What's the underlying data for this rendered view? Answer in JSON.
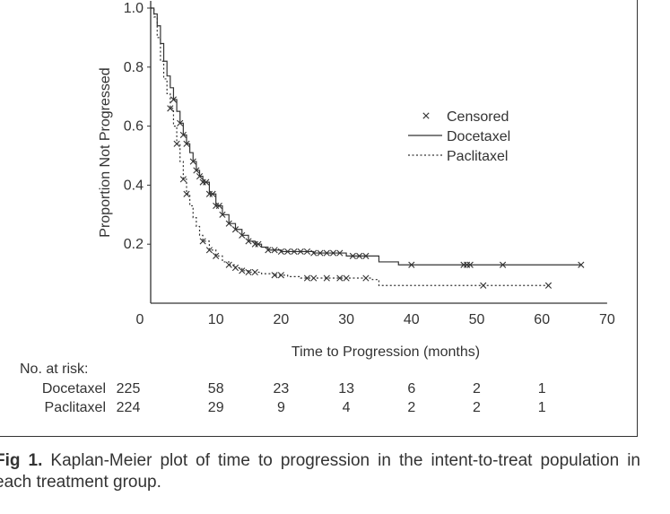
{
  "chart_data": {
    "type": "line",
    "title": "",
    "xlabel": "Time to Progression (months)",
    "ylabel": "Proportion Not Progressed",
    "xlim": [
      0,
      70
    ],
    "ylim": [
      0,
      1.0
    ],
    "x_ticks": [
      0,
      10,
      20,
      30,
      40,
      50,
      60,
      70
    ],
    "y_ticks": [
      0.2,
      0.4,
      0.6,
      0.8,
      1.0
    ],
    "y_tick_labels": [
      "0.2",
      "0.4",
      "0.6",
      "0.8",
      "1.0"
    ],
    "grid": false,
    "legend_position": "right",
    "legend": [
      {
        "label": "Censored",
        "marker": "×"
      },
      {
        "label": "Docetaxel",
        "style": "solid"
      },
      {
        "label": "Paclitaxel",
        "style": "dotted"
      }
    ],
    "series": [
      {
        "name": "Docetaxel",
        "style": "solid",
        "color": "#333333",
        "steps": [
          [
            0,
            1.0
          ],
          [
            0.5,
            0.98
          ],
          [
            1,
            0.94
          ],
          [
            1.5,
            0.88
          ],
          [
            2,
            0.82
          ],
          [
            2.5,
            0.77
          ],
          [
            3,
            0.73
          ],
          [
            3.5,
            0.69
          ],
          [
            4,
            0.65
          ],
          [
            4.5,
            0.61
          ],
          [
            5,
            0.57
          ],
          [
            5.5,
            0.54
          ],
          [
            6,
            0.51
          ],
          [
            6.5,
            0.48
          ],
          [
            7,
            0.45
          ],
          [
            7.5,
            0.43
          ],
          [
            8,
            0.41
          ],
          [
            9,
            0.37
          ],
          [
            10,
            0.33
          ],
          [
            11,
            0.3
          ],
          [
            12,
            0.27
          ],
          [
            13,
            0.25
          ],
          [
            14,
            0.23
          ],
          [
            15,
            0.21
          ],
          [
            16,
            0.2
          ],
          [
            17,
            0.19
          ],
          [
            18,
            0.18
          ],
          [
            20,
            0.175
          ],
          [
            25,
            0.17
          ],
          [
            30,
            0.16
          ],
          [
            33,
            0.16
          ],
          [
            35,
            0.14
          ],
          [
            38,
            0.13
          ],
          [
            66,
            0.13
          ]
        ],
        "censored_x": [
          3.5,
          4.5,
          5,
          5.5,
          6.5,
          7,
          7.5,
          8,
          8.5,
          9,
          9.5,
          10,
          10.5,
          11,
          12,
          13,
          14,
          15,
          16,
          16.5,
          18,
          19,
          20,
          21,
          22,
          23,
          24,
          25,
          26,
          27,
          28,
          29,
          31,
          32,
          33,
          40,
          48,
          48.5,
          49,
          54,
          66
        ]
      },
      {
        "name": "Paclitaxel",
        "style": "dotted",
        "color": "#333333",
        "steps": [
          [
            0,
            1.0
          ],
          [
            0.5,
            0.97
          ],
          [
            1,
            0.9
          ],
          [
            1.5,
            0.82
          ],
          [
            2,
            0.76
          ],
          [
            2.5,
            0.71
          ],
          [
            3,
            0.66
          ],
          [
            3.5,
            0.6
          ],
          [
            4,
            0.54
          ],
          [
            4.5,
            0.48
          ],
          [
            5,
            0.42
          ],
          [
            5.5,
            0.37
          ],
          [
            6,
            0.33
          ],
          [
            6.5,
            0.29
          ],
          [
            7,
            0.26
          ],
          [
            7.5,
            0.23
          ],
          [
            8,
            0.21
          ],
          [
            9,
            0.18
          ],
          [
            10,
            0.16
          ],
          [
            11,
            0.14
          ],
          [
            12,
            0.13
          ],
          [
            13,
            0.12
          ],
          [
            14,
            0.11
          ],
          [
            15,
            0.105
          ],
          [
            17,
            0.1
          ],
          [
            19,
            0.095
          ],
          [
            21,
            0.09
          ],
          [
            23,
            0.085
          ],
          [
            34,
            0.08
          ],
          [
            35,
            0.06
          ],
          [
            61,
            0.06
          ]
        ],
        "censored_x": [
          3,
          4,
          5,
          5.5,
          8,
          9,
          10,
          12,
          13,
          14,
          15,
          16,
          19,
          20,
          24,
          25,
          27,
          29,
          30,
          33,
          51,
          61
        ]
      }
    ]
  },
  "risk_table": {
    "title": "No. at risk:",
    "x": [
      0,
      10,
      20,
      30,
      40,
      50,
      60
    ],
    "rows": [
      {
        "label": "Docetaxel",
        "values": [
          "225",
          "58",
          "23",
          "13",
          "6",
          "2",
          "1"
        ]
      },
      {
        "label": "Paclitaxel",
        "values": [
          "224",
          "29",
          "9",
          "4",
          "2",
          "2",
          "1"
        ]
      }
    ]
  },
  "caption": {
    "label": "Fig 1.",
    "text": " Kaplan-Meier plot of time to progression in the intent-to-treat population in each treatment group."
  }
}
